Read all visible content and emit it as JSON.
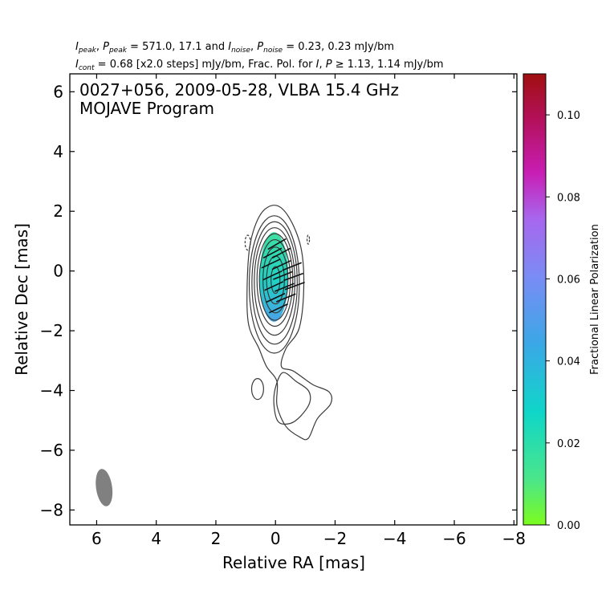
{
  "header": {
    "line1": "I_peak, P_peak = 571.0, 17.1 and I_noise, P_noise = 0.23, 0.23 mJy/bm",
    "line1_parts": {
      "i": "I",
      "i_sub": "peak",
      "sep1": ", ",
      "p": "P",
      "p_sub": "peak",
      "v1": " = 571.0, 17.1 and ",
      "i2": "I",
      "i2_sub": "noise",
      "sep2": ", ",
      "p2": "P",
      "p2_sub": "noise",
      "v2": " = 0.23, 0.23 mJy/bm"
    },
    "line2": "I_cont = 0.68 [x2.0 steps] mJy/bm, Frac. Pol. for I, P ≥ 1.13, 1.14 mJy/bm",
    "line2_parts": {
      "i": "I",
      "i_sub": "cont",
      "v1": " = 0.68 [x2.0 steps] mJy/bm, Frac. Pol. for ",
      "i2": "I",
      "sep": ", ",
      "p": "P",
      "v2": " ≥ 1.13, 1.14 mJy/bm"
    }
  },
  "chart_data": {
    "type": "contour",
    "title_line1": "0027+056, 2009-05-28, VLBA 15.4 GHz",
    "title_line2": "MOJAVE Program",
    "xlabel": "Relative RA [mas]",
    "ylabel": "Relative Dec [mas]",
    "xlim": [
      6.9,
      -8.1
    ],
    "ylim": [
      -8.5,
      6.6
    ],
    "xticks": [
      6,
      4,
      2,
      0,
      -2,
      -4,
      -6,
      -8
    ],
    "xtick_labels": [
      "6",
      "4",
      "2",
      "0",
      "−2",
      "−4",
      "−6",
      "−8"
    ],
    "yticks": [
      6,
      4,
      2,
      0,
      -2,
      -4,
      -6,
      -8
    ],
    "ytick_labels": [
      "6",
      "4",
      "2",
      "0",
      "−2",
      "−4",
      "−6",
      "−8"
    ],
    "colorbar": {
      "label": "Fractional Linear Polarization",
      "range": [
        0.0,
        0.11
      ],
      "ticks": [
        0.0,
        0.02,
        0.04,
        0.06,
        0.08,
        0.1
      ],
      "tick_labels": [
        "0.00",
        "0.02",
        "0.04",
        "0.06",
        "0.08",
        "0.10"
      ],
      "colors": [
        "#7cfc1e",
        "#4be68a",
        "#0fd6c8",
        "#3aa8e6",
        "#7a8cf5",
        "#a866ee",
        "#c81eb4",
        "#b3105a",
        "#a00f0f"
      ]
    },
    "contours": [
      {
        "name": "core-contour",
        "cx": 0.0,
        "cy": -0.3,
        "rx": 0.15,
        "ry": 0.45
      },
      {
        "name": "core-contour",
        "cx": 0.0,
        "cy": -0.3,
        "rx": 0.3,
        "ry": 0.8
      },
      {
        "name": "core-contour",
        "cx": 0.0,
        "cy": -0.3,
        "rx": 0.42,
        "ry": 1.1
      },
      {
        "name": "core-contour",
        "cx": 0.02,
        "cy": -0.3,
        "rx": 0.52,
        "ry": 1.35
      },
      {
        "name": "core-contour",
        "cx": 0.02,
        "cy": -0.3,
        "rx": 0.6,
        "ry": 1.55
      },
      {
        "name": "core-contour",
        "cx": 0.03,
        "cy": -0.35,
        "rx": 0.68,
        "ry": 1.8
      },
      {
        "name": "core-contour",
        "cx": 0.03,
        "cy": -0.4,
        "rx": 0.76,
        "ry": 2.05
      },
      {
        "name": "core-contour",
        "cx": 0.04,
        "cy": -0.45,
        "rx": 0.84,
        "ry": 2.3
      }
    ],
    "outer_contour": [
      [
        0.0,
        2.2
      ],
      [
        -0.45,
        1.8
      ],
      [
        -0.85,
        0.8
      ],
      [
        -0.95,
        -0.5
      ],
      [
        -0.8,
        -1.9
      ],
      [
        -0.35,
        -2.6
      ],
      [
        -0.2,
        -3.2
      ],
      [
        -0.6,
        -3.35
      ],
      [
        -1.25,
        -3.8
      ],
      [
        -1.8,
        -4.05
      ],
      [
        -1.85,
        -4.45
      ],
      [
        -1.4,
        -4.95
      ],
      [
        -1.1,
        -5.6
      ],
      [
        -0.8,
        -5.55
      ],
      [
        -0.35,
        -5.2
      ],
      [
        -0.05,
        -4.5
      ],
      [
        -0.05,
        -3.7
      ],
      [
        0.3,
        -3.2
      ],
      [
        0.55,
        -2.6
      ],
      [
        0.9,
        -1.8
      ],
      [
        0.95,
        -0.5
      ],
      [
        0.85,
        0.9
      ],
      [
        0.5,
        1.9
      ]
    ],
    "inner_contour": [
      [
        -0.25,
        -3.4
      ],
      [
        -0.7,
        -3.7
      ],
      [
        -1.1,
        -4.0
      ],
      [
        -1.15,
        -4.4
      ],
      [
        -0.85,
        -4.85
      ],
      [
        -0.5,
        -5.1
      ],
      [
        -0.1,
        -5.05
      ],
      [
        0.05,
        -4.5
      ],
      [
        0.0,
        -3.9
      ]
    ],
    "side_contour": {
      "cx": 0.6,
      "cy": -3.95,
      "rx": 0.2,
      "ry": 0.35
    },
    "negative_contours": [
      {
        "cx": 0.93,
        "cy": 0.95,
        "rx": 0.09,
        "ry": 0.25
      },
      {
        "cx": -1.1,
        "cy": 1.05,
        "rx": 0.04,
        "ry": 0.15
      }
    ],
    "polarization": {
      "cx": 0.05,
      "cy": -0.2,
      "rx": 0.48,
      "ry": 1.5,
      "color_top": "#3fdfa0",
      "color_mid": "#1fd0c4",
      "color_bottom": "#4aa3e8",
      "vectors": [
        {
          "x": -0.05,
          "y": 0.9,
          "angle": 30
        },
        {
          "x": 0.1,
          "y": 0.6,
          "angle": 28
        },
        {
          "x": -0.2,
          "y": 0.6,
          "angle": 28
        },
        {
          "x": 0.15,
          "y": 0.25,
          "angle": 25
        },
        {
          "x": -0.2,
          "y": 0.2,
          "angle": 25
        },
        {
          "x": -0.55,
          "y": 0.15,
          "angle": 22
        },
        {
          "x": 0.1,
          "y": -0.15,
          "angle": 25
        },
        {
          "x": -0.25,
          "y": -0.15,
          "angle": 22
        },
        {
          "x": -0.6,
          "y": -0.2,
          "angle": 20
        },
        {
          "x": 0.05,
          "y": -0.5,
          "angle": 25
        },
        {
          "x": -0.3,
          "y": -0.55,
          "angle": 22
        },
        {
          "x": -0.65,
          "y": -0.5,
          "angle": 20
        },
        {
          "x": 0.0,
          "y": -0.9,
          "angle": 25
        },
        {
          "x": -0.35,
          "y": -0.9,
          "angle": 22
        },
        {
          "x": -0.1,
          "y": -1.25,
          "angle": 25
        }
      ]
    },
    "beam": {
      "cx": 5.75,
      "cy": -7.25,
      "rx": 0.27,
      "ry": 0.63,
      "angle": -8,
      "color": "#808080"
    }
  }
}
